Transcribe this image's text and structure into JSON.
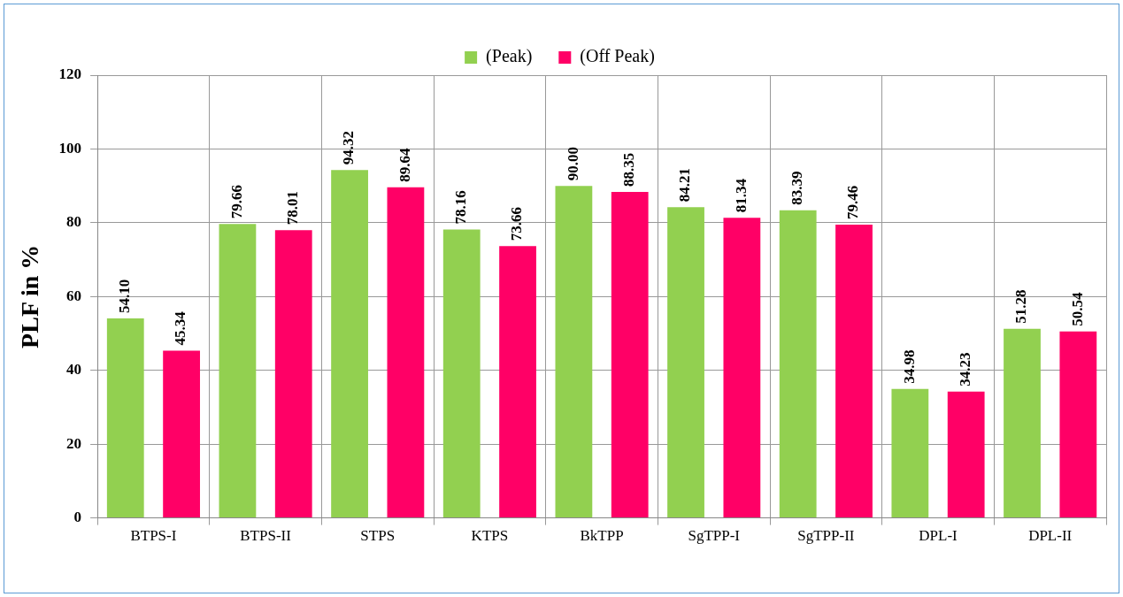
{
  "chart_data": {
    "type": "bar",
    "ylabel": "PLF in %",
    "categories": [
      "BTPS-I",
      "BTPS-II",
      "STPS",
      "KTPS",
      "BkTPP",
      "SgTPP-I",
      "SgTPP-II",
      "DPL-I",
      "DPL-II"
    ],
    "series": [
      {
        "name": "(Peak)",
        "color": "#92d050",
        "values": [
          54.1,
          79.66,
          94.32,
          78.16,
          90.0,
          84.21,
          83.39,
          34.98,
          51.28
        ],
        "value_labels": [
          "54.10",
          "79.66",
          "94.32",
          "78.16",
          "90.00",
          "84.21",
          "83.39",
          "34.98",
          "51.28"
        ]
      },
      {
        "name": "(Off Peak)",
        "color": "#ff0066",
        "values": [
          45.34,
          78.01,
          89.64,
          73.66,
          88.35,
          81.34,
          79.46,
          34.23,
          50.54
        ],
        "value_labels": [
          "45.34",
          "78.01",
          "89.64",
          "73.66",
          "88.35",
          "81.34",
          "79.46",
          "34.23",
          "50.54"
        ]
      }
    ],
    "ylim": [
      0,
      120
    ],
    "yticks": [
      0,
      20,
      40,
      60,
      80,
      100,
      120
    ],
    "grid": true,
    "legend": "top"
  }
}
